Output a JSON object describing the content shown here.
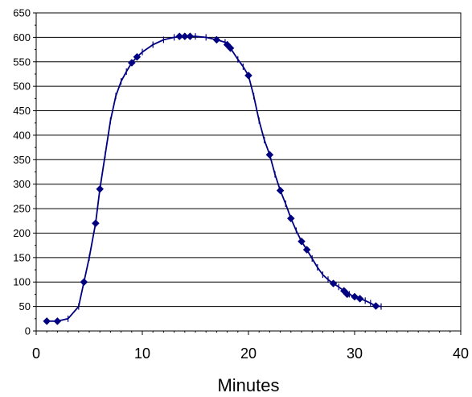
{
  "chart_data": {
    "type": "line",
    "title": "",
    "xlabel": "Minutes",
    "ylabel": "",
    "xlim": [
      0,
      40
    ],
    "ylim": [
      0,
      650
    ],
    "xticks": [
      0,
      10,
      20,
      30,
      40
    ],
    "yticks": [
      0,
      50,
      100,
      150,
      200,
      250,
      300,
      350,
      400,
      450,
      500,
      550,
      600,
      650
    ],
    "grid": "horizontal",
    "legend": "none",
    "color": "#000080",
    "series": [
      {
        "curve": [
          [
            1.0,
            20
          ],
          [
            2.0,
            20
          ],
          [
            3.0,
            25
          ],
          [
            4.0,
            50
          ],
          [
            4.5,
            100
          ],
          [
            5.0,
            150
          ],
          [
            5.6,
            220
          ],
          [
            6.0,
            290
          ],
          [
            6.5,
            360
          ],
          [
            7.0,
            430
          ],
          [
            7.5,
            480
          ],
          [
            8.0,
            510
          ],
          [
            8.5,
            530
          ],
          [
            9.0,
            548
          ],
          [
            9.5,
            560
          ],
          [
            10.0,
            570
          ],
          [
            11.0,
            585
          ],
          [
            12.0,
            595
          ],
          [
            13.0,
            600
          ],
          [
            14.0,
            602
          ],
          [
            15.0,
            602
          ],
          [
            16.0,
            600
          ],
          [
            17.0,
            595
          ],
          [
            17.8,
            590
          ],
          [
            18.3,
            578
          ],
          [
            19.0,
            555
          ],
          [
            19.5,
            540
          ],
          [
            20.0,
            522
          ],
          [
            20.5,
            480
          ],
          [
            21.0,
            430
          ],
          [
            21.5,
            390
          ],
          [
            22.0,
            360
          ],
          [
            22.5,
            320
          ],
          [
            23.0,
            287
          ],
          [
            23.5,
            260
          ],
          [
            24.0,
            230
          ],
          [
            24.5,
            205
          ],
          [
            25.0,
            183
          ],
          [
            25.5,
            166
          ],
          [
            26.0,
            148
          ],
          [
            26.5,
            130
          ],
          [
            27.0,
            115
          ],
          [
            27.5,
            105
          ],
          [
            28.0,
            97
          ],
          [
            28.5,
            90
          ],
          [
            29.0,
            82
          ],
          [
            29.5,
            75
          ],
          [
            30.0,
            70
          ],
          [
            30.5,
            66
          ],
          [
            31.0,
            62
          ],
          [
            31.5,
            57
          ],
          [
            32.0,
            51
          ],
          [
            32.5,
            50
          ]
        ],
        "markers": [
          [
            1.0,
            20
          ],
          [
            2.0,
            20
          ],
          [
            4.5,
            100
          ],
          [
            5.6,
            220
          ],
          [
            6.0,
            290
          ],
          [
            9.0,
            548
          ],
          [
            9.5,
            560
          ],
          [
            13.5,
            602
          ],
          [
            14.0,
            602
          ],
          [
            14.5,
            602
          ],
          [
            17.0,
            595
          ],
          [
            18.0,
            585
          ],
          [
            18.3,
            578
          ],
          [
            20.0,
            522
          ],
          [
            22.0,
            360
          ],
          [
            23.0,
            287
          ],
          [
            24.0,
            230
          ],
          [
            25.0,
            183
          ],
          [
            25.5,
            166
          ],
          [
            28.0,
            97
          ],
          [
            29.0,
            82
          ],
          [
            29.3,
            75
          ],
          [
            30.0,
            70
          ],
          [
            30.5,
            66
          ],
          [
            32.0,
            51
          ]
        ]
      }
    ]
  }
}
